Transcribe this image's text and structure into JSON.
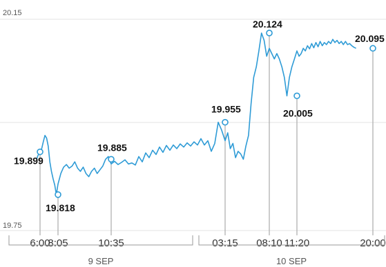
{
  "chart_data": {
    "type": "line",
    "ylim": [
      19.75,
      20.15
    ],
    "y_tick_labels": [
      "20.15",
      "19.75"
    ],
    "grid": true,
    "line_color": "#2e9bd6",
    "grid_color": "#e3e3e3",
    "x_ticks": [
      "6:00",
      "8:05",
      "10:35",
      "03:15",
      "08:10",
      "11:20",
      "20:00"
    ],
    "day_groups": [
      "9 SEP",
      "10 SEP"
    ],
    "annotations": [
      {
        "time": "6:00",
        "value": 19.899,
        "label": "19.899"
      },
      {
        "time": "8:05",
        "value": 19.818,
        "label": "19.818"
      },
      {
        "time": "10:35",
        "value": 19.885,
        "label": "19.885"
      },
      {
        "time": "03:15",
        "value": 19.955,
        "label": "19.955"
      },
      {
        "time": "08:10",
        "value": 20.124,
        "label": "20.124"
      },
      {
        "time": "11:20",
        "value": 20.005,
        "label": "20.005"
      },
      {
        "time": "20:00",
        "value": 20.095,
        "label": "20.095"
      }
    ],
    "series": [
      {
        "values": [
          19.899,
          19.905,
          19.918,
          19.93,
          19.925,
          19.91,
          19.88,
          19.862,
          19.848,
          19.836,
          19.818,
          19.838,
          19.858,
          19.87,
          19.875,
          19.868,
          19.872,
          19.88,
          19.868,
          19.862,
          19.87,
          19.858,
          19.852,
          19.862,
          19.868,
          19.858,
          19.865,
          19.872,
          19.885,
          19.89,
          19.876,
          19.881,
          19.875,
          19.879,
          19.884,
          19.876,
          19.878,
          19.874,
          19.89,
          19.88,
          19.897,
          19.888,
          19.902,
          19.894,
          19.908,
          19.898,
          19.911,
          19.902,
          19.912,
          19.905,
          19.914,
          19.908,
          19.916,
          19.91,
          19.918,
          19.912,
          19.924,
          19.912,
          19.92,
          19.9,
          19.915,
          19.955,
          19.94,
          19.92,
          19.935,
          19.905,
          19.915,
          19.888,
          19.9,
          19.895,
          19.885,
          19.91,
          19.93,
          19.99,
          20.04,
          20.06,
          20.09,
          20.124,
          20.11,
          20.08,
          20.095,
          20.085,
          20.075,
          20.085,
          20.075,
          20.06,
          20.04,
          20.005,
          20.04,
          20.06,
          20.075,
          20.09,
          20.08,
          20.085,
          20.095,
          20.09,
          20.1,
          20.094,
          20.104,
          20.096,
          20.106,
          20.098,
          20.108,
          20.1,
          20.106,
          20.102,
          20.108,
          20.104,
          20.112,
          20.106,
          20.11,
          20.104,
          20.108,
          20.102,
          20.108,
          20.102,
          20.104,
          20.1,
          20.097,
          20.095
        ]
      }
    ],
    "segments": [
      {
        "times": [
          "6:00",
          "8:05"
        ],
        "points": 11
      },
      {
        "times": [
          "8:05",
          "10:35"
        ],
        "points": 19
      },
      {
        "times": [
          "10:35",
          "03:15"
        ],
        "points": 33
      },
      {
        "times": [
          "03:15",
          "08:10"
        ],
        "points": 17
      },
      {
        "times": [
          "08:10",
          "11:20"
        ],
        "points": 11
      },
      {
        "times": [
          "11:20",
          "20:00"
        ],
        "points": 36
      }
    ]
  }
}
